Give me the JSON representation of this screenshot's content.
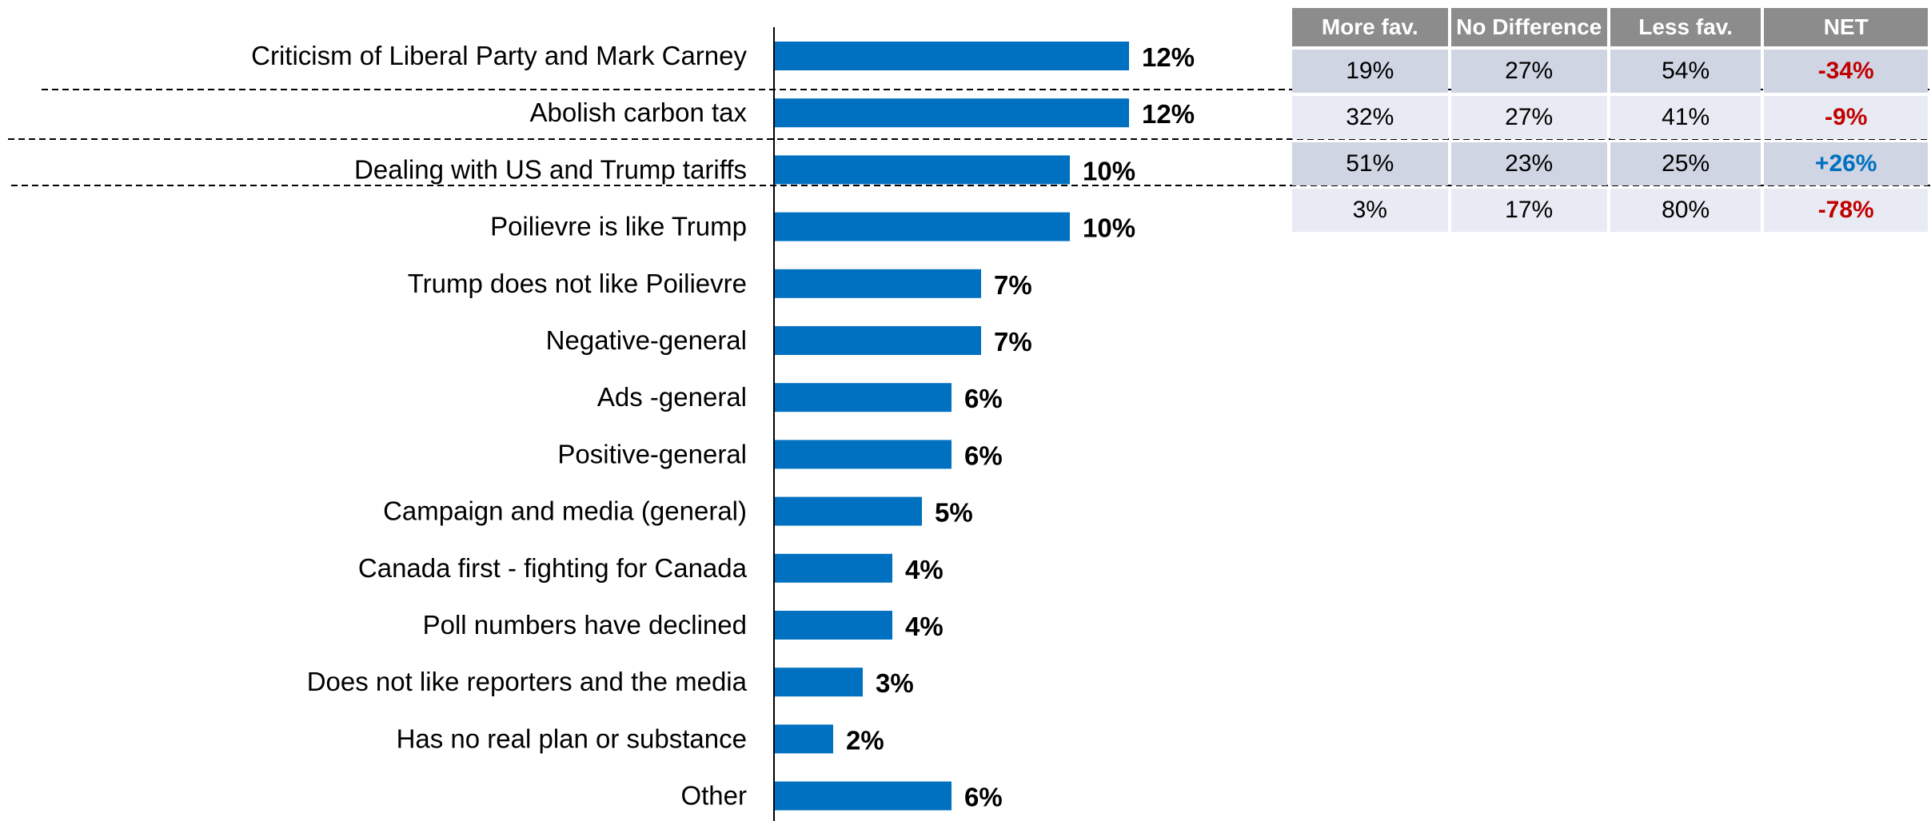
{
  "chart_data": {
    "type": "bar",
    "orientation": "horizontal",
    "categories": [
      "Criticism of Liberal Party and Mark Carney",
      "Abolish carbon tax",
      "Dealing with US and Trump tariffs",
      "Poilievre is like Trump",
      "Trump does not like Poilievre",
      "Negative-general",
      "Ads -general",
      "Positive-general",
      "Campaign and media (general)",
      "Canada first - fighting for Canada",
      "Poll numbers have declined",
      "Does not like reporters and the media",
      "Has no real plan or substance",
      "Other"
    ],
    "values": [
      12,
      12,
      10,
      10,
      7,
      7,
      6,
      6,
      5,
      4,
      4,
      3,
      2,
      6
    ],
    "data_labels": [
      "12%",
      "12%",
      "10%",
      "10%",
      "7%",
      "7%",
      "6%",
      "6%",
      "5%",
      "4%",
      "4%",
      "3%",
      "2%",
      "6%"
    ],
    "bar_color": "#0070c0",
    "grid": false,
    "xlim": [
      0,
      12
    ]
  },
  "net_table": {
    "headers": [
      "More fav.",
      "No Difference",
      "Less fav.",
      "NET"
    ],
    "rows": [
      {
        "more": "19%",
        "nodiff": "27%",
        "less": "54%",
        "net": "-34%",
        "net_sign": "neg"
      },
      {
        "more": "32%",
        "nodiff": "27%",
        "less": "41%",
        "net": "-9%",
        "net_sign": "neg"
      },
      {
        "more": "51%",
        "nodiff": "23%",
        "less": "25%",
        "net": "+26%",
        "net_sign": "pos"
      },
      {
        "more": "3%",
        "nodiff": "17%",
        "less": "80%",
        "net": "-78%",
        "net_sign": "neg"
      }
    ],
    "colors": {
      "header_bg": "#8c8c8c",
      "row_dark": "#cfd5e3",
      "row_light": "#e8ebf3",
      "negative": "#c00000",
      "positive": "#0070c0"
    }
  }
}
